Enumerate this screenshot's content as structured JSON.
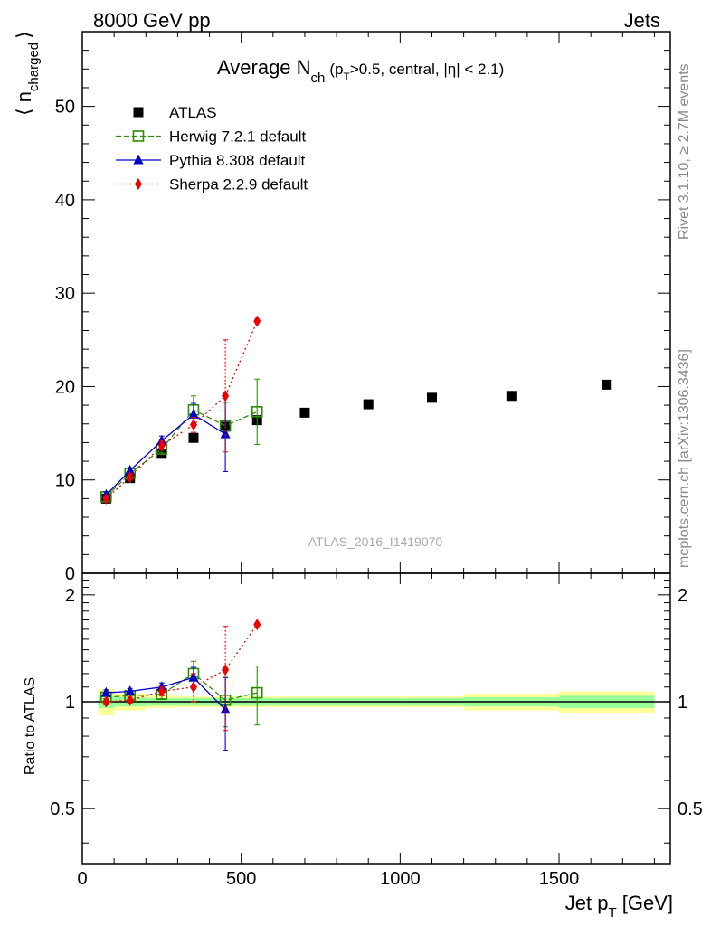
{
  "header": {
    "left": "8000 GeV pp",
    "right": "Jets"
  },
  "side": {
    "top": "Rivet 3.1.10, ≥ 2.7M events",
    "bottom": "mcplots.cern.ch [arXiv:1306.3436]"
  },
  "watermark": "ATLAS_2016_I1419070",
  "colors": {
    "data": "#000000",
    "herwig": "#2e8b07",
    "pythia": "#0000cc",
    "sherpa": "#ee0000",
    "band_inner": "#99ff99",
    "band_outer": "#ffff99"
  },
  "chart_data": {
    "type": "scatter",
    "title": "Average N_ch (p_T>0.5, central, |η| < 2.1)",
    "title_parts": {
      "main": "Average N",
      "main_sub": "ch",
      "p": "(p",
      "p_sub": "T",
      "rest": ">0.5, central, |η| < 2.1)"
    },
    "ylabel_parts": {
      "open": "⟨ n",
      "sub": "charged",
      "close": "⟩"
    },
    "xlabel_parts": {
      "main": "Jet p",
      "sub": "T",
      "unit": " [GeV]"
    },
    "ratio_ylabel": "Ratio to ATLAS",
    "xlim": [
      0,
      1850
    ],
    "ylim": [
      0,
      58
    ],
    "ratio_ylim": [
      0.35,
      2.3
    ],
    "ratio_log": true,
    "x_ticks": [
      "0",
      "500",
      "1000",
      "1500"
    ],
    "x_tick_values": [
      0,
      500,
      1000,
      1500
    ],
    "y_ticks": [
      "0",
      "10",
      "20",
      "30",
      "40",
      "50"
    ],
    "y_tick_values": [
      0,
      10,
      20,
      30,
      40,
      50
    ],
    "ratio_ticks": [
      "0.5",
      "1",
      "2"
    ],
    "ratio_tick_values": [
      0.5,
      1,
      2
    ],
    "legend_position": "top-left",
    "x_edges": [
      50,
      100,
      200,
      300,
      400,
      500,
      600,
      800,
      1000,
      1200,
      1500,
      1800
    ],
    "x": [
      75,
      150,
      250,
      350,
      450,
      550,
      700,
      900,
      1100,
      1350,
      1650
    ],
    "data": {
      "name": "ATLAS",
      "values": [
        8.0,
        10.2,
        12.8,
        14.5,
        15.7,
        16.4,
        17.2,
        18.1,
        18.8,
        19.0,
        20.2
      ],
      "ratio_inner": [
        0.04,
        0.03,
        0.025,
        0.025,
        0.025,
        0.025,
        0.025,
        0.025,
        0.025,
        0.03,
        0.04
      ],
      "ratio_outer": [
        0.085,
        0.055,
        0.04,
        0.035,
        0.035,
        0.035,
        0.035,
        0.035,
        0.035,
        0.055,
        0.07
      ]
    },
    "series": [
      {
        "name": "Herwig 7.2.1 default",
        "x": [
          75,
          150,
          250,
          350,
          450,
          550
        ],
        "values": [
          8.2,
          10.7,
          13.3,
          17.5,
          15.8,
          17.3
        ],
        "errors": [
          0.3,
          0.3,
          0.4,
          1.5,
          2.5,
          3.5
        ],
        "ratio": [
          1.03,
          1.04,
          1.05,
          1.2,
          1.01,
          1.06
        ],
        "ratio_errors": [
          0.02,
          0.02,
          0.03,
          0.1,
          0.16,
          0.2
        ]
      },
      {
        "name": "Pythia 8.308 default",
        "x": [
          75,
          150,
          250,
          350,
          450,
          550
        ],
        "values": [
          8.4,
          11.0,
          14.2,
          17.0,
          14.9,
          null
        ],
        "errors": [
          0.3,
          0.3,
          0.5,
          1.2,
          4.0,
          null
        ],
        "ratio": [
          1.06,
          1.07,
          1.1,
          1.17,
          0.95,
          null
        ],
        "ratio_errors": [
          0.02,
          0.02,
          0.03,
          0.08,
          0.22,
          null
        ]
      },
      {
        "name": "Sherpa 2.2.9 default",
        "x": [
          75,
          150,
          250,
          350,
          450,
          550
        ],
        "values": [
          8.0,
          10.3,
          13.7,
          15.9,
          19.0,
          27.0
        ],
        "errors": [
          0.2,
          0.3,
          0.5,
          0.8,
          6.0,
          0.0
        ],
        "ratio": [
          1.0,
          1.01,
          1.07,
          1.1,
          1.23,
          1.65
        ],
        "ratio_errors": [
          0.02,
          0.02,
          0.03,
          0.1,
          0.4,
          0.0
        ]
      }
    ]
  }
}
